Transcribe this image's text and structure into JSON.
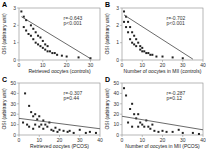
{
  "chart_data": [
    {
      "type": "scatter",
      "title": "A",
      "x_label": "Retrieved oocytes (controls)",
      "y_label": "OSI (arbitrary unit)",
      "xlim": [
        0,
        34
      ],
      "ylim": [
        0,
        3
      ],
      "xticks": [
        0,
        10,
        20,
        30
      ],
      "yticks": [
        0,
        1,
        2,
        3
      ],
      "annotations": [
        "r=-0.643",
        "p<0.001"
      ],
      "series": [
        {
          "type": "scatter",
          "marker": "square",
          "color": "#222222",
          "x": [
            1,
            2,
            2,
            3,
            3,
            4,
            5,
            5,
            6,
            6,
            7,
            7,
            8,
            8,
            9,
            9,
            10,
            10,
            11,
            11,
            12,
            12,
            13,
            14,
            15,
            16,
            18,
            20,
            25,
            30
          ],
          "values": [
            2.8,
            2.5,
            1.9,
            2.3,
            1.7,
            1.5,
            2.0,
            1.4,
            1.8,
            1.2,
            1.6,
            1.0,
            1.4,
            0.9,
            1.3,
            0.8,
            1.1,
            0.7,
            0.9,
            0.6,
            0.8,
            0.5,
            0.5,
            0.4,
            0.4,
            0.3,
            0.25,
            0.2,
            0.15,
            0.1
          ]
        },
        {
          "type": "line",
          "line_style": "solid",
          "color": "#444444",
          "x": [
            1,
            30
          ],
          "values": [
            2.5,
            0.08
          ]
        }
      ]
    },
    {
      "type": "scatter",
      "title": "B",
      "x_label": "Number of oocytes in MII (controls)",
      "y_label": "OSI (arbitrary unit)",
      "xlim": [
        0,
        40
      ],
      "ylim": [
        0,
        3
      ],
      "xticks": [
        0,
        10,
        20,
        30,
        40
      ],
      "yticks": [
        0,
        1,
        2,
        3
      ],
      "annotations": [
        "r=-0.702",
        "p<0.001"
      ],
      "series": [
        {
          "type": "scatter",
          "marker": "square",
          "color": "#222222",
          "x": [
            1,
            1,
            2,
            2,
            3,
            3,
            4,
            4,
            5,
            5,
            6,
            6,
            7,
            7,
            8,
            9,
            9,
            10,
            10,
            11,
            12,
            13,
            14,
            15,
            17,
            20,
            25,
            30
          ],
          "values": [
            2.8,
            2.2,
            2.5,
            1.9,
            2.2,
            1.6,
            1.9,
            1.2,
            1.6,
            1.0,
            1.4,
            0.9,
            1.2,
            0.8,
            1.0,
            0.8,
            0.6,
            0.7,
            0.5,
            0.5,
            0.4,
            0.4,
            0.3,
            0.3,
            0.2,
            0.2,
            0.15,
            0.1
          ]
        },
        {
          "type": "line",
          "line_style": "solid",
          "color": "#444444",
          "x": [
            1,
            35
          ],
          "values": [
            2.6,
            0.05
          ]
        }
      ]
    },
    {
      "type": "scatter",
      "title": "C",
      "x_label": "Retrieved oocytes (PCOS)",
      "y_label": "OSI (arbitrary unit)",
      "xlim": [
        0,
        40
      ],
      "ylim": [
        0,
        50
      ],
      "xticks": [
        0,
        10,
        20,
        30,
        40
      ],
      "yticks": [
        0,
        10,
        20,
        30,
        40,
        50
      ],
      "annotations": [
        "r=-0.307",
        "p=0.44"
      ],
      "series": [
        {
          "type": "scatter",
          "marker": "square",
          "color": "#222222",
          "x": [
            2,
            3,
            4,
            5,
            5,
            6,
            7,
            7,
            8,
            8,
            9,
            10,
            10,
            11,
            12,
            12,
            13,
            14,
            15,
            16,
            17,
            18,
            19,
            20,
            22,
            24,
            25,
            27,
            30,
            33,
            35,
            38
          ],
          "values": [
            12,
            40,
            10,
            28,
            8,
            22,
            18,
            6,
            20,
            10,
            15,
            18,
            8,
            10,
            14,
            6,
            10,
            8,
            12,
            5,
            4,
            7,
            3,
            5,
            4,
            3,
            4,
            2,
            5,
            2,
            3,
            2
          ]
        },
        {
          "type": "line",
          "line_style": "solid",
          "color": "#444444",
          "x": [
            0,
            40
          ],
          "values": [
            16,
            6
          ]
        }
      ]
    },
    {
      "type": "scatter",
      "title": "D",
      "x_label": "Number of oocytes in MII (PCOS)",
      "y_label": "OSI (arbitrary unit)",
      "xlim": [
        0,
        40
      ],
      "ylim": [
        0,
        50
      ],
      "xticks": [
        0,
        10,
        20,
        30,
        40
      ],
      "yticks": [
        0,
        10,
        20,
        30,
        40,
        50
      ],
      "annotations": [
        "r=-0.287",
        "p=0.12"
      ],
      "series": [
        {
          "type": "scatter",
          "marker": "square",
          "color": "#222222",
          "x": [
            1,
            2,
            3,
            4,
            5,
            5,
            6,
            7,
            8,
            8,
            9,
            10,
            11,
            12,
            13,
            14,
            15,
            16,
            18,
            20,
            22,
            25,
            28,
            30,
            35,
            38
          ],
          "values": [
            45,
            38,
            12,
            25,
            30,
            8,
            20,
            16,
            20,
            8,
            12,
            10,
            8,
            14,
            8,
            6,
            10,
            4,
            3,
            4,
            3,
            3,
            5,
            2,
            2,
            1
          ]
        },
        {
          "type": "line",
          "line_style": "solid",
          "color": "#444444",
          "x": [
            0,
            40
          ],
          "values": [
            18,
            5
          ]
        }
      ]
    }
  ]
}
